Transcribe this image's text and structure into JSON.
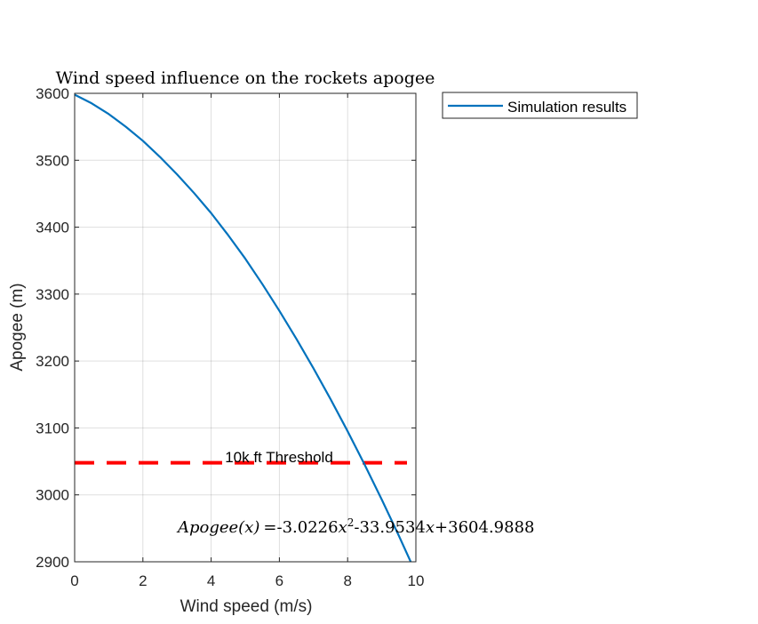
{
  "chart_data": {
    "type": "line",
    "title": "Wind speed influence on the rockets apogee",
    "xlabel": "Wind speed (m/s)",
    "ylabel": "Apogee (m)",
    "xlim": [
      0,
      10
    ],
    "ylim": [
      2900,
      3600
    ],
    "xticks": [
      0,
      2,
      4,
      6,
      8,
      10
    ],
    "yticks": [
      2900,
      3000,
      3100,
      3200,
      3300,
      3400,
      3500,
      3600
    ],
    "grid": true,
    "legend_position": "outside top-right",
    "series": [
      {
        "name": "Simulation results",
        "color": "#0072BD",
        "x": [
          0,
          0.5,
          1,
          1.5,
          2,
          2.5,
          3,
          3.5,
          4,
          4.5,
          5,
          5.5,
          6,
          6.5,
          7,
          7.5,
          8,
          8.5,
          9,
          9.5,
          10
        ],
        "y": [
          3598,
          3585,
          3569,
          3550,
          3529,
          3505,
          3479,
          3451,
          3421,
          3388,
          3353,
          3315,
          3275,
          3233,
          3189,
          3143,
          3095,
          3045,
          2993,
          2939,
          2883
        ]
      }
    ],
    "threshold": {
      "value": 3048,
      "label": "10k ft Threshold",
      "color": "#FF0000"
    },
    "equation": {
      "lhs": "Apogee(x)",
      "a": "-3.0226",
      "b": "-33.9534",
      "c": "+3604.9888"
    }
  }
}
